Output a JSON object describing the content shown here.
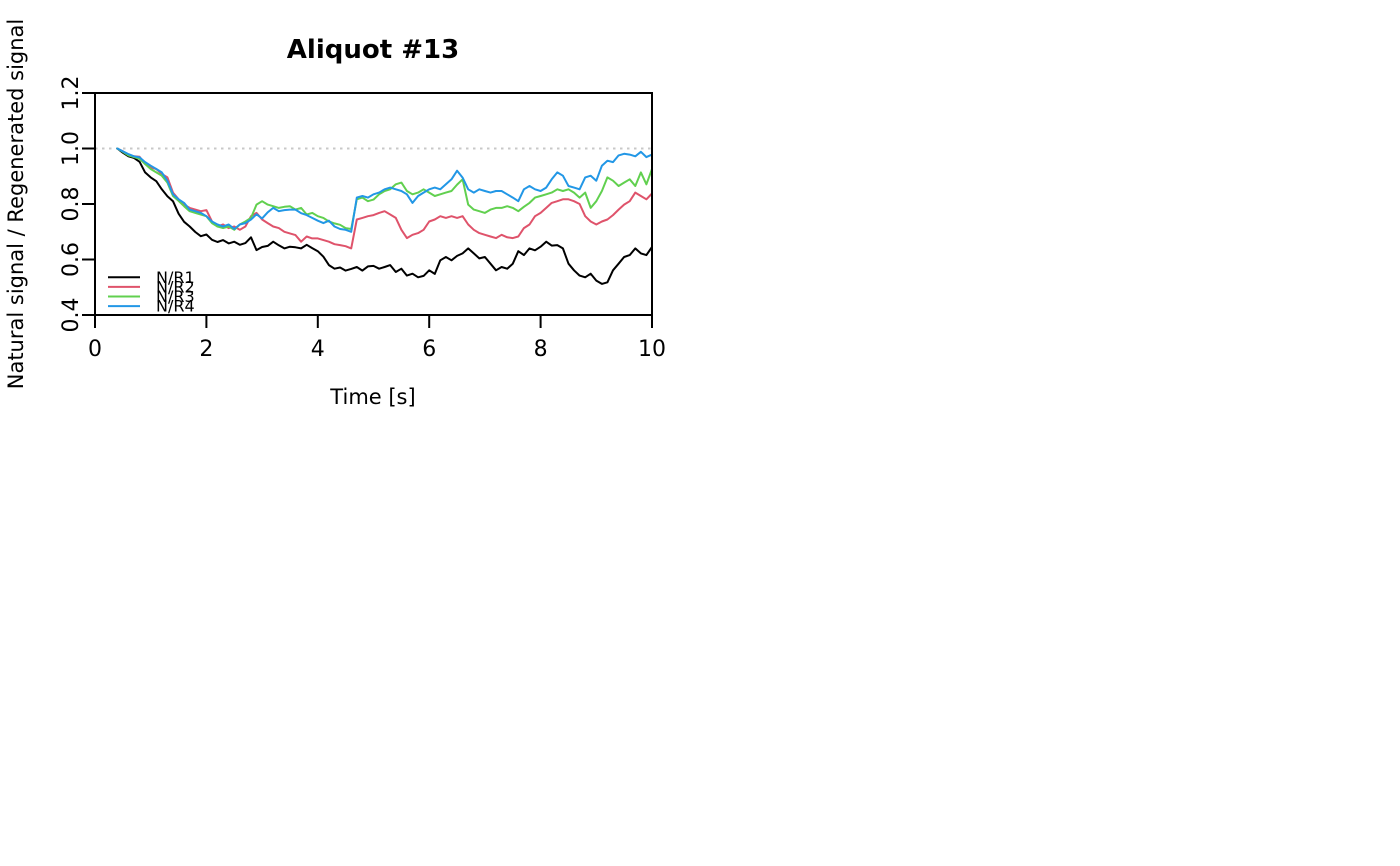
{
  "page": {
    "background": "#ffffff"
  },
  "chart_data": {
    "type": "line",
    "title": "Aliquot #13",
    "xlabel": "Time [s]",
    "ylabel": "Natural signal / Regenerated signal",
    "xlim": [
      0,
      10
    ],
    "ylim": [
      0.4,
      1.2
    ],
    "grid": false,
    "x_ticks": [
      0,
      2,
      4,
      6,
      8,
      10
    ],
    "x_tick_labels": [
      "0",
      "2",
      "4",
      "6",
      "8",
      "10"
    ],
    "y_ticks": [
      0.4,
      0.6,
      0.8,
      1.0,
      1.2
    ],
    "y_tick_labels": [
      "0.4",
      "0.6",
      "0.8",
      "1.0",
      "1.2"
    ],
    "reference_line": {
      "y": 1.0,
      "style": "dotted",
      "color": "#C8C8C8"
    },
    "legend": {
      "position": "bottom-left",
      "entries": [
        "N/R1",
        "N/R2",
        "N/R3",
        "N/R4"
      ]
    },
    "x": [
      0.4,
      0.5,
      0.6,
      0.7,
      0.8,
      0.9,
      1,
      1.1,
      1.2,
      1.3,
      1.4,
      1.5,
      1.6,
      1.7,
      1.8,
      1.9,
      2,
      2.1,
      2.2,
      2.3,
      2.4,
      2.5,
      2.6,
      2.7,
      2.8,
      2.9,
      3,
      3.1,
      3.2,
      3.3,
      3.4,
      3.5,
      3.6,
      3.7,
      3.8,
      3.9,
      4,
      4.1,
      4.2,
      4.3,
      4.4,
      4.5,
      4.6,
      4.7,
      4.8,
      4.9,
      5,
      5.1,
      5.2,
      5.3,
      5.4,
      5.5,
      5.6,
      5.7,
      5.8,
      5.9,
      6,
      6.1,
      6.2,
      6.3,
      6.4,
      6.5,
      6.6,
      6.7,
      6.8,
      6.9,
      7,
      7.1,
      7.2,
      7.3,
      7.4,
      7.5,
      7.6,
      7.7,
      7.8,
      7.9,
      8,
      8.1,
      8.2,
      8.3,
      8.4,
      8.5,
      8.6,
      8.7,
      8.8,
      8.9,
      9,
      9.1,
      9.2,
      9.3,
      9.4,
      9.5,
      9.6,
      9.7,
      9.8,
      9.9,
      10
    ],
    "series": [
      {
        "name": "N/R1",
        "color": "#000000",
        "values": [
          1.0,
          0.985,
          0.972,
          0.966,
          0.952,
          0.914,
          0.896,
          0.882,
          0.853,
          0.828,
          0.81,
          0.765,
          0.736,
          0.719,
          0.699,
          0.684,
          0.69,
          0.671,
          0.663,
          0.67,
          0.658,
          0.664,
          0.653,
          0.659,
          0.68,
          0.634,
          0.645,
          0.649,
          0.664,
          0.651,
          0.64,
          0.646,
          0.644,
          0.64,
          0.653,
          0.641,
          0.63,
          0.61,
          0.58,
          0.567,
          0.571,
          0.56,
          0.566,
          0.573,
          0.56,
          0.575,
          0.577,
          0.567,
          0.573,
          0.58,
          0.555,
          0.567,
          0.542,
          0.549,
          0.536,
          0.541,
          0.561,
          0.548,
          0.597,
          0.609,
          0.597,
          0.613,
          0.622,
          0.64,
          0.622,
          0.604,
          0.609,
          0.585,
          0.561,
          0.573,
          0.567,
          0.585,
          0.63,
          0.616,
          0.64,
          0.633,
          0.646,
          0.664,
          0.65,
          0.652,
          0.64,
          0.585,
          0.561,
          0.542,
          0.536,
          0.549,
          0.524,
          0.512,
          0.518,
          0.561,
          0.585,
          0.609,
          0.616,
          0.64,
          0.622,
          0.616,
          0.645
        ]
      },
      {
        "name": "N/R2",
        "color": "#DF536B",
        "values": [
          1.0,
          0.99,
          0.978,
          0.972,
          0.97,
          0.944,
          0.932,
          0.926,
          0.908,
          0.896,
          0.841,
          0.817,
          0.798,
          0.786,
          0.78,
          0.774,
          0.778,
          0.737,
          0.719,
          0.726,
          0.713,
          0.719,
          0.707,
          0.719,
          0.756,
          0.768,
          0.744,
          0.731,
          0.719,
          0.713,
          0.7,
          0.694,
          0.688,
          0.664,
          0.683,
          0.676,
          0.676,
          0.67,
          0.664,
          0.655,
          0.652,
          0.648,
          0.64,
          0.744,
          0.75,
          0.756,
          0.76,
          0.768,
          0.774,
          0.762,
          0.75,
          0.707,
          0.677,
          0.689,
          0.695,
          0.707,
          0.737,
          0.744,
          0.756,
          0.75,
          0.756,
          0.75,
          0.756,
          0.726,
          0.707,
          0.695,
          0.689,
          0.683,
          0.677,
          0.689,
          0.68,
          0.677,
          0.683,
          0.713,
          0.726,
          0.756,
          0.768,
          0.786,
          0.804,
          0.81,
          0.817,
          0.817,
          0.81,
          0.8,
          0.756,
          0.737,
          0.726,
          0.737,
          0.744,
          0.76,
          0.78,
          0.798,
          0.81,
          0.841,
          0.829,
          0.817,
          0.838
        ]
      },
      {
        "name": "N/R3",
        "color": "#61D04F",
        "values": [
          1.0,
          0.988,
          0.975,
          0.969,
          0.963,
          0.944,
          0.926,
          0.914,
          0.902,
          0.877,
          0.829,
          0.811,
          0.792,
          0.774,
          0.768,
          0.762,
          0.756,
          0.731,
          0.719,
          0.713,
          0.719,
          0.707,
          0.726,
          0.737,
          0.75,
          0.798,
          0.81,
          0.798,
          0.792,
          0.786,
          0.79,
          0.792,
          0.78,
          0.786,
          0.762,
          0.768,
          0.756,
          0.75,
          0.737,
          0.73,
          0.725,
          0.713,
          0.71,
          0.817,
          0.823,
          0.81,
          0.816,
          0.835,
          0.847,
          0.853,
          0.871,
          0.877,
          0.847,
          0.835,
          0.841,
          0.853,
          0.841,
          0.829,
          0.835,
          0.841,
          0.847,
          0.87,
          0.889,
          0.798,
          0.78,
          0.774,
          0.768,
          0.78,
          0.786,
          0.786,
          0.792,
          0.786,
          0.774,
          0.79,
          0.804,
          0.823,
          0.829,
          0.835,
          0.841,
          0.853,
          0.847,
          0.853,
          0.841,
          0.823,
          0.841,
          0.786,
          0.81,
          0.847,
          0.896,
          0.884,
          0.865,
          0.877,
          0.889,
          0.865,
          0.914,
          0.871,
          0.926
        ]
      },
      {
        "name": "N/R4",
        "color": "#2297E6",
        "values": [
          1.0,
          0.99,
          0.98,
          0.972,
          0.968,
          0.951,
          0.938,
          0.926,
          0.914,
          0.884,
          0.835,
          0.817,
          0.804,
          0.78,
          0.774,
          0.768,
          0.756,
          0.737,
          0.726,
          0.719,
          0.726,
          0.71,
          0.726,
          0.731,
          0.744,
          0.763,
          0.748,
          0.77,
          0.786,
          0.774,
          0.778,
          0.78,
          0.78,
          0.767,
          0.76,
          0.75,
          0.74,
          0.731,
          0.74,
          0.719,
          0.71,
          0.707,
          0.7,
          0.823,
          0.829,
          0.823,
          0.835,
          0.841,
          0.853,
          0.859,
          0.853,
          0.847,
          0.835,
          0.804,
          0.829,
          0.841,
          0.853,
          0.859,
          0.853,
          0.871,
          0.889,
          0.92,
          0.895,
          0.853,
          0.841,
          0.853,
          0.847,
          0.841,
          0.847,
          0.847,
          0.835,
          0.823,
          0.81,
          0.853,
          0.865,
          0.853,
          0.847,
          0.859,
          0.889,
          0.914,
          0.902,
          0.865,
          0.859,
          0.853,
          0.896,
          0.902,
          0.884,
          0.938,
          0.956,
          0.951,
          0.975,
          0.981,
          0.978,
          0.972,
          0.988,
          0.969,
          0.978
        ]
      }
    ]
  }
}
